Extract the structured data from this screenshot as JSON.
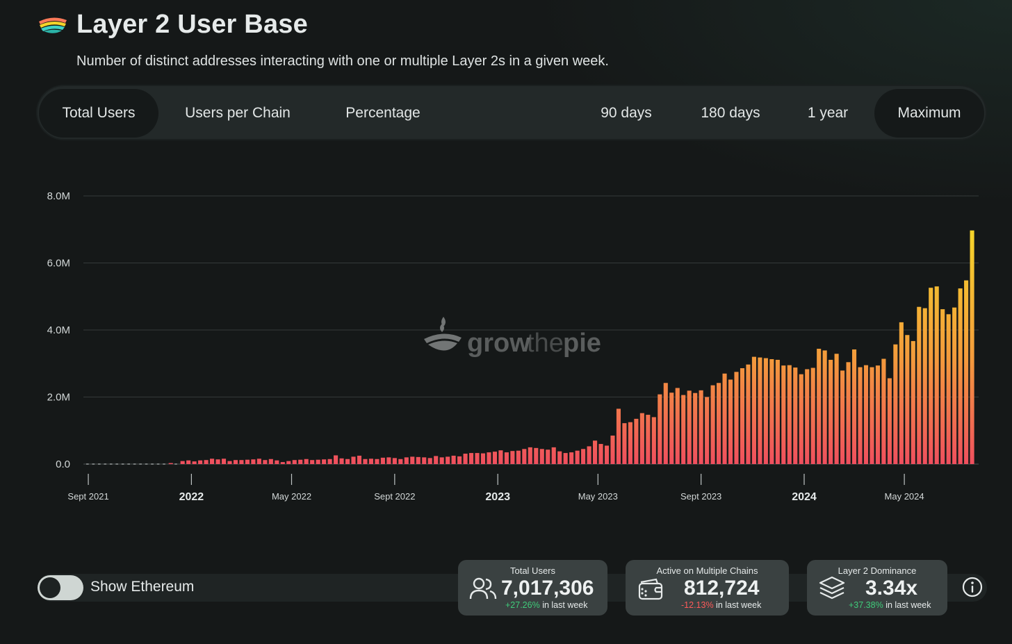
{
  "header": {
    "title": "Layer 2 User Base",
    "subtitle": "Number of distinct addresses interacting with one or multiple Layer 2s in a given week.",
    "logo_icon": "growthepie-logo-icon"
  },
  "tabs": {
    "metric": [
      {
        "label": "Total Users",
        "active": true
      },
      {
        "label": "Users per Chain",
        "active": false
      },
      {
        "label": "Percentage",
        "active": false
      }
    ],
    "range": [
      {
        "label": "90 days",
        "active": false
      },
      {
        "label": "180 days",
        "active": false
      },
      {
        "label": "1 year",
        "active": false
      },
      {
        "label": "Maximum",
        "active": true
      }
    ]
  },
  "watermark": {
    "text_grow": "grow",
    "text_the": "the",
    "text_pie": "pie"
  },
  "colors": {
    "bar_top": "#f5d42a",
    "bar_mid": "#f39a3c",
    "bar_bottom": "#ef4f5e",
    "grid": "#3a3f3f",
    "accent_pos": "#3fcc7a",
    "accent_neg": "#ff5a5a"
  },
  "chart_data": {
    "type": "bar",
    "title": "Layer 2 User Base",
    "ylabel": "",
    "xlabel": "",
    "ylim": [
      0,
      8000000
    ],
    "y_ticks": [
      {
        "value": 0,
        "label": "0.0"
      },
      {
        "value": 2000000,
        "label": "2.0M"
      },
      {
        "value": 4000000,
        "label": "4.0M"
      },
      {
        "value": 6000000,
        "label": "6.0M"
      },
      {
        "value": 8000000,
        "label": "8.0M"
      }
    ],
    "x_ticks": [
      {
        "label": "Sept 2021",
        "week_index": 0,
        "year": false
      },
      {
        "label": "2022",
        "week_index": 17.5,
        "year": true
      },
      {
        "label": "May 2022",
        "week_index": 34.5,
        "year": false
      },
      {
        "label": "Sept 2022",
        "week_index": 52,
        "year": false
      },
      {
        "label": "2023",
        "week_index": 69.5,
        "year": true
      },
      {
        "label": "May 2023",
        "week_index": 86.5,
        "year": false
      },
      {
        "label": "Sept 2023",
        "week_index": 104,
        "year": false
      },
      {
        "label": "2024",
        "week_index": 121.5,
        "year": true
      },
      {
        "label": "May 2024",
        "week_index": 138.5,
        "year": false
      }
    ],
    "series": [
      {
        "name": "Total Users (weekly)",
        "values": [
          0,
          0,
          0,
          0,
          0,
          0,
          0,
          0,
          0,
          0,
          0,
          0,
          0,
          0,
          30000,
          0,
          90000,
          110000,
          80000,
          110000,
          120000,
          160000,
          140000,
          160000,
          90000,
          120000,
          120000,
          130000,
          140000,
          160000,
          120000,
          150000,
          110000,
          60000,
          90000,
          120000,
          130000,
          150000,
          120000,
          130000,
          140000,
          150000,
          260000,
          170000,
          150000,
          220000,
          250000,
          150000,
          160000,
          150000,
          190000,
          200000,
          180000,
          150000,
          200000,
          220000,
          210000,
          200000,
          180000,
          240000,
          200000,
          220000,
          250000,
          230000,
          310000,
          330000,
          330000,
          320000,
          350000,
          370000,
          410000,
          350000,
          390000,
          400000,
          450000,
          500000,
          480000,
          450000,
          430000,
          500000,
          380000,
          330000,
          350000,
          400000,
          450000,
          530000,
          700000,
          600000,
          550000,
          850000,
          1650000,
          1220000,
          1250000,
          1350000,
          1520000,
          1470000,
          1400000,
          2080000,
          2420000,
          2130000,
          2270000,
          2060000,
          2190000,
          2120000,
          2200000,
          2000000,
          2350000,
          2420000,
          2700000,
          2520000,
          2750000,
          2860000,
          2970000,
          3200000,
          3180000,
          3160000,
          3130000,
          3110000,
          2940000,
          2950000,
          2880000,
          2680000,
          2830000,
          2870000,
          3440000,
          3390000,
          3110000,
          3290000,
          2790000,
          3040000,
          3420000,
          2890000,
          2950000,
          2890000,
          2940000,
          3140000,
          2560000,
          3570000,
          4230000,
          3850000,
          3670000,
          4690000,
          4650000,
          5260000,
          5300000,
          4620000,
          4470000,
          4670000,
          5240000,
          5480000,
          6970000
        ]
      }
    ]
  },
  "footer": {
    "toggle_label": "Show Ethereum",
    "toggle_on": false,
    "cards": [
      {
        "title": "Total Users",
        "value": "7,017,306",
        "change": "+27.26%",
        "change_suffix": "in last week",
        "icon": "users-icon",
        "positive": true
      },
      {
        "title": "Active on Multiple Chains",
        "value": "812,724",
        "change": "-12.13%",
        "change_suffix": "in last week",
        "icon": "wallet-icon",
        "positive": false
      },
      {
        "title": "Layer 2 Dominance",
        "value": "3.34x",
        "change": "+37.38%",
        "change_suffix": "in last week",
        "icon": "layers-icon",
        "positive": true
      }
    ],
    "info_icon": "info-icon"
  }
}
